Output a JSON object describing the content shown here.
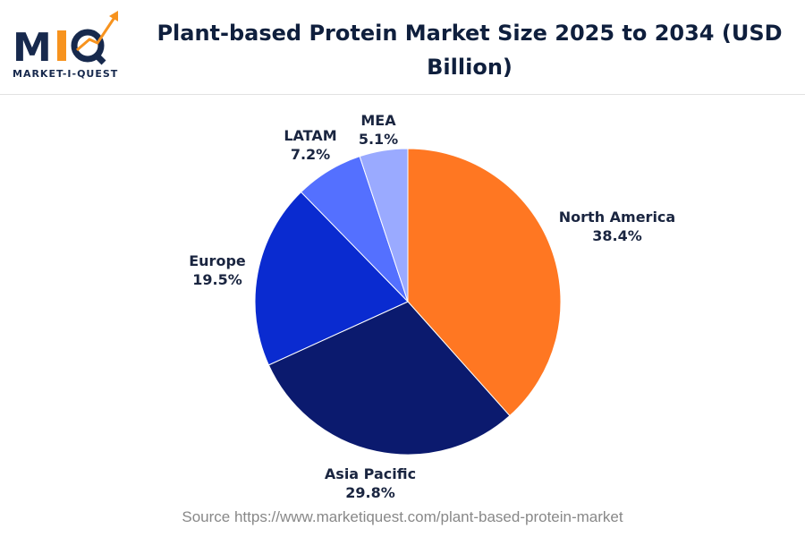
{
  "logo": {
    "text": "MIQ",
    "tagline": "MARKET-I-QUEST"
  },
  "chart_data": {
    "type": "pie",
    "title": "Plant-based Protein Market Size 2025 to 2034 (USD Billion)",
    "start_angle": "top",
    "direction": "clockwise",
    "slices": [
      {
        "label": "North America",
        "value": 38.4,
        "display": "38.4%",
        "color": "#FF7722"
      },
      {
        "label": "Asia Pacific",
        "value": 29.8,
        "display": "29.8%",
        "color": "#0B1A6E"
      },
      {
        "label": "Europe",
        "value": 19.5,
        "display": "19.5%",
        "color": "#0A2BD0"
      },
      {
        "label": "LATAM",
        "value": 7.2,
        "display": "7.2%",
        "color": "#5470FF"
      },
      {
        "label": "MEA",
        "value": 5.1,
        "display": "5.1%",
        "color": "#9AAAFF"
      }
    ]
  },
  "source": "Source https://www.marketiquest.com/plant-based-protein-market"
}
